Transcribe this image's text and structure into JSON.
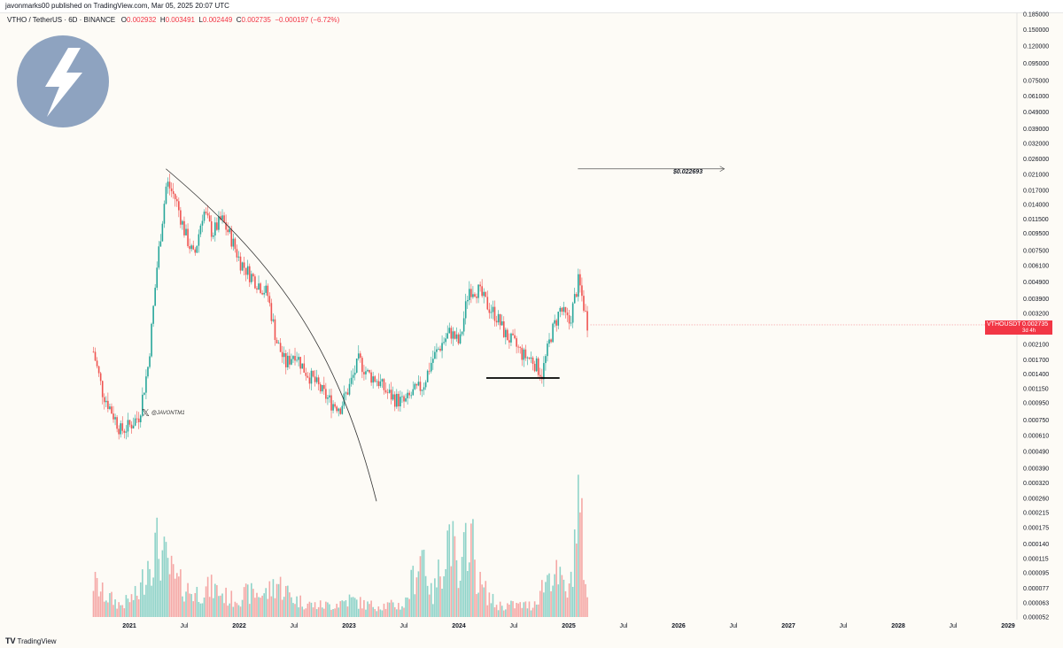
{
  "header": {
    "published": "javonmarks00 published on TradingView.com, Mar 05, 2025 20:07 UTC",
    "symbol": "VTHO / TetherUS · 6D · BINANCE",
    "o_label": "O",
    "o_value": "0.002932",
    "h_label": "H",
    "h_value": "0.003491",
    "l_label": "L",
    "l_value": "0.002449",
    "c_label": "C",
    "c_value": "0.002735",
    "change": "−0.000197 (−6.72%)"
  },
  "annotations": {
    "handle": "@JAVONTM1",
    "target_price": "$0.022693"
  },
  "price_tag": {
    "symbol": "VTHOUSDT",
    "value": "0.002735",
    "countdown": "3d 4h"
  },
  "footer": {
    "brand": "TradingView"
  },
  "colors": {
    "up": "#26a69a",
    "down": "#ef5350",
    "up_volume": "#8fd3c9",
    "down_volume": "#f5a8a6",
    "background": "#fdfbf6",
    "tag": "#f23645",
    "logo": "#8ea3c0"
  },
  "icons": [
    "lightning-bolt-icon",
    "x-logo-icon",
    "tradingview-logo-icon"
  ],
  "chart_data": {
    "type": "candlestick",
    "symbol": "VTHO / TetherUS",
    "interval": "6D",
    "exchange": "BINANCE",
    "y_scale": "log",
    "y_ticks": [
      "0.185000",
      "0.150000",
      "0.120000",
      "0.095000",
      "0.075000",
      "0.061000",
      "0.049000",
      "0.039000",
      "0.032000",
      "0.026000",
      "0.021000",
      "0.017000",
      "0.014000",
      "0.011500",
      "0.009500",
      "0.007500",
      "0.006100",
      "0.004900",
      "0.003900",
      "0.003200",
      "0.002100",
      "0.001700",
      "0.001400",
      "0.001150",
      "0.000950",
      "0.000750",
      "0.000610",
      "0.000490",
      "0.000390",
      "0.000320",
      "0.000260",
      "0.000215",
      "0.000175",
      "0.000140",
      "0.000115",
      "0.000095",
      "0.000077",
      "0.000063",
      "0.000052"
    ],
    "x_ticks": [
      "2021",
      "Jul",
      "2022",
      "Jul",
      "2023",
      "Jul",
      "2024",
      "Jul",
      "2025",
      "Jul",
      "2026",
      "Jul",
      "2027",
      "Jul",
      "2028",
      "Jul",
      "2029"
    ],
    "price_path": [
      [
        "2020-09",
        0.0019
      ],
      [
        "2020-10",
        0.0011
      ],
      [
        "2020-12",
        0.00065
      ],
      [
        "2021-01",
        0.0007
      ],
      [
        "2021-02",
        0.0008
      ],
      [
        "2021-03",
        0.0016
      ],
      [
        "2021-04",
        0.0065
      ],
      [
        "2021-05",
        0.019
      ],
      [
        "2021-06",
        0.015
      ],
      [
        "2021-07",
        0.0095
      ],
      [
        "2021-08",
        0.0068
      ],
      [
        "2021-09",
        0.013
      ],
      [
        "2021-10",
        0.0095
      ],
      [
        "2021-11",
        0.0115
      ],
      [
        "2021-12",
        0.009
      ],
      [
        "2022-01",
        0.0065
      ],
      [
        "2022-02",
        0.0055
      ],
      [
        "2022-03",
        0.0048
      ],
      [
        "2022-04",
        0.0042
      ],
      [
        "2022-05",
        0.0022
      ],
      [
        "2022-06",
        0.0016
      ],
      [
        "2022-07",
        0.0019
      ],
      [
        "2022-08",
        0.0015
      ],
      [
        "2022-09",
        0.0013
      ],
      [
        "2022-10",
        0.0011
      ],
      [
        "2022-11",
        0.00095
      ],
      [
        "2022-12",
        0.0009
      ],
      [
        "2023-01",
        0.0012
      ],
      [
        "2023-02",
        0.0017
      ],
      [
        "2023-03",
        0.0014
      ],
      [
        "2023-04",
        0.0013
      ],
      [
        "2023-05",
        0.0011
      ],
      [
        "2023-06",
        0.001
      ],
      [
        "2023-07",
        0.00095
      ],
      [
        "2023-08",
        0.0011
      ],
      [
        "2023-09",
        0.0012
      ],
      [
        "2023-10",
        0.0017
      ],
      [
        "2023-11",
        0.0021
      ],
      [
        "2023-12",
        0.0025
      ],
      [
        "2024-01",
        0.0021
      ],
      [
        "2024-02",
        0.0045
      ],
      [
        "2024-03",
        0.0044
      ],
      [
        "2024-04",
        0.0036
      ],
      [
        "2024-05",
        0.0031
      ],
      [
        "2024-06",
        0.0024
      ],
      [
        "2024-07",
        0.0021
      ],
      [
        "2024-08",
        0.0018
      ],
      [
        "2024-09",
        0.0017
      ],
      [
        "2024-10",
        0.0014
      ],
      [
        "2024-11",
        0.0024
      ],
      [
        "2024-12",
        0.0034
      ],
      [
        "2025-01",
        0.0028
      ],
      [
        "2025-02",
        0.005
      ],
      [
        "2025-03",
        0.002735
      ]
    ],
    "volume_path": [
      [
        "2020-09",
        0.3
      ],
      [
        "2020-10",
        0.2
      ],
      [
        "2020-12",
        0.1
      ],
      [
        "2021-02",
        0.2
      ],
      [
        "2021-03",
        0.5
      ],
      [
        "2021-04",
        0.6
      ],
      [
        "2021-05",
        0.45
      ],
      [
        "2021-06",
        0.3
      ],
      [
        "2021-08",
        0.2
      ],
      [
        "2021-10",
        0.25
      ],
      [
        "2021-12",
        0.15
      ],
      [
        "2022-02",
        0.2
      ],
      [
        "2022-04",
        0.2
      ],
      [
        "2022-05",
        0.3
      ],
      [
        "2022-07",
        0.15
      ],
      [
        "2022-09",
        0.1
      ],
      [
        "2022-11",
        0.1
      ],
      [
        "2023-01",
        0.15
      ],
      [
        "2023-03",
        0.1
      ],
      [
        "2023-05",
        0.1
      ],
      [
        "2023-07",
        0.1
      ],
      [
        "2023-09",
        0.6
      ],
      [
        "2023-10",
        0.15
      ],
      [
        "2023-12",
        0.75
      ],
      [
        "2024-01",
        0.2
      ],
      [
        "2024-02",
        0.85
      ],
      [
        "2024-03",
        0.3
      ],
      [
        "2024-05",
        0.1
      ],
      [
        "2024-07",
        0.1
      ],
      [
        "2024-09",
        0.1
      ],
      [
        "2024-11",
        0.4
      ],
      [
        "2024-12",
        0.3
      ],
      [
        "2025-01",
        0.2
      ],
      [
        "2025-02",
        1.0
      ],
      [
        "2025-03",
        0.15
      ]
    ],
    "drawings": {
      "resistance_curve": [
        [
          "2021-05",
          0.022693
        ],
        [
          "2022-06",
          0.0036
        ],
        [
          "2022-12",
          0.0011
        ],
        [
          "2023-04",
          0.00025
        ]
      ],
      "support_line": {
        "from": "2024-04",
        "to": "2024-12",
        "price": 0.00133
      },
      "target_arrow": {
        "from": "2025-02",
        "to": "2026-06",
        "price": 0.022693
      }
    },
    "last_price": 0.002735
  }
}
